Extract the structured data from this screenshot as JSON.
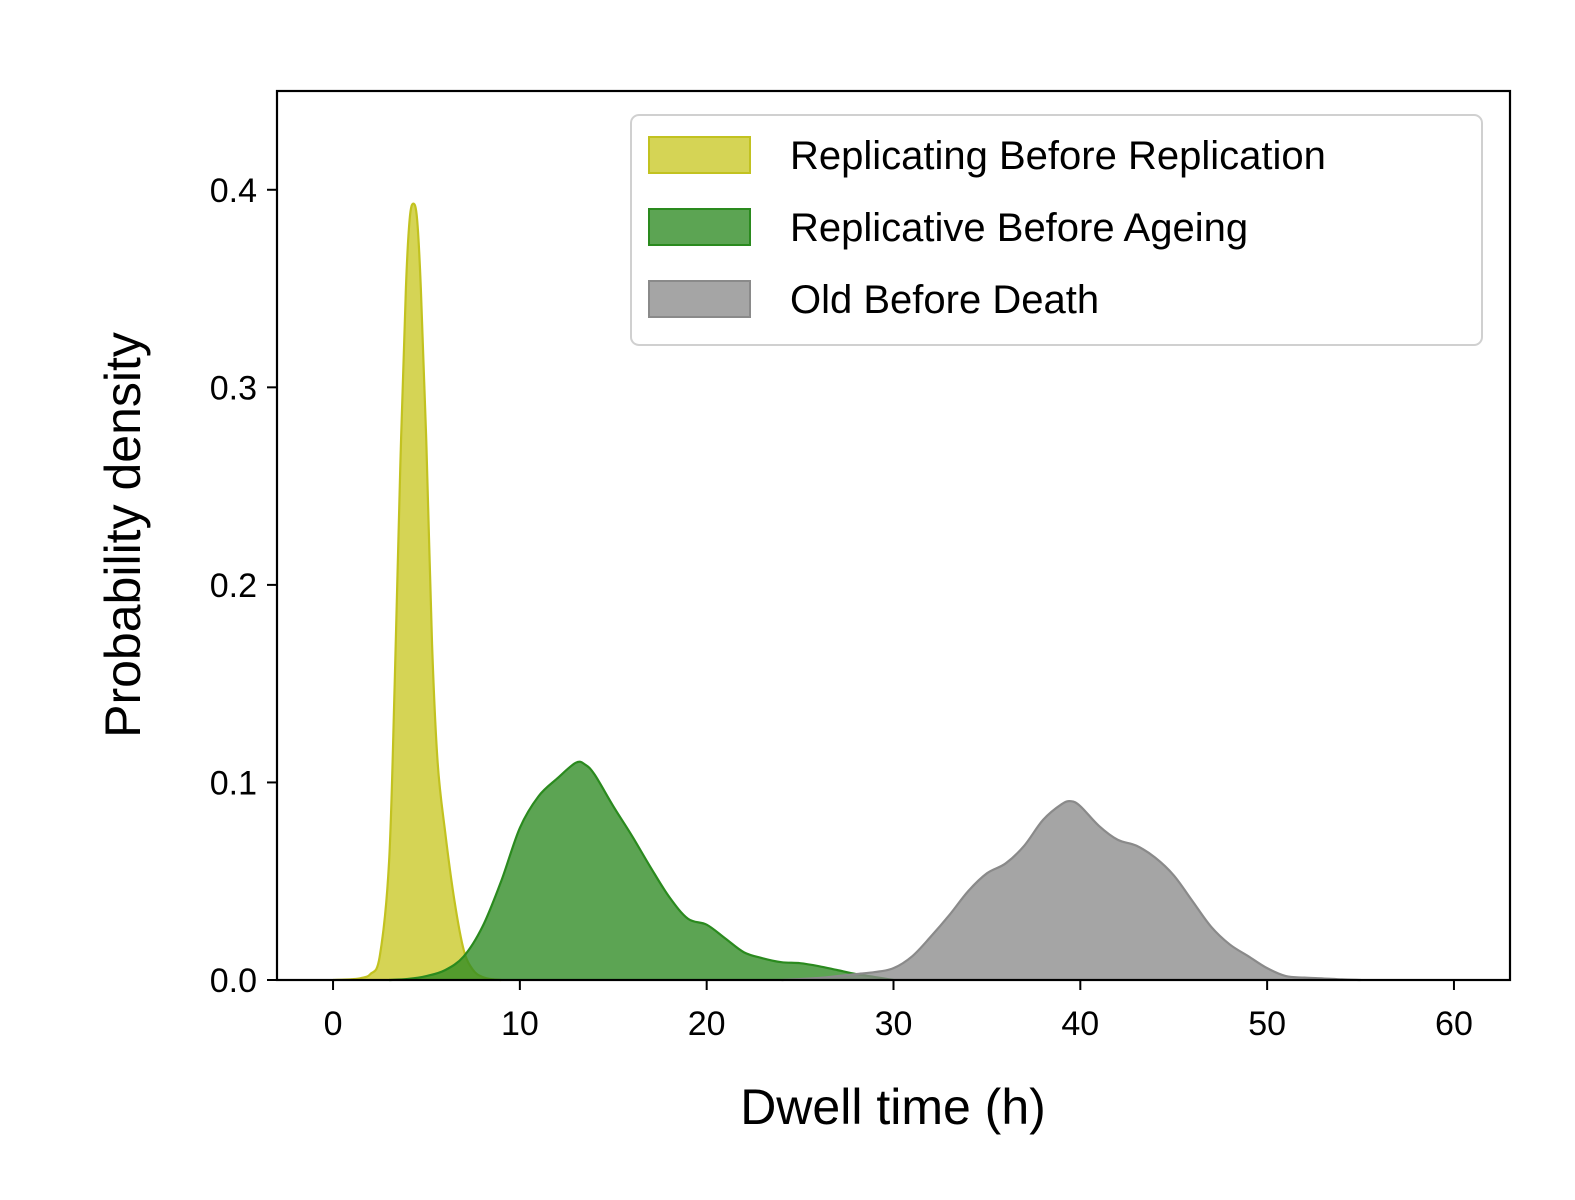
{
  "chart_data": {
    "type": "area",
    "title": "",
    "xlabel": "Dwell time (h)",
    "ylabel": "Probability density",
    "xlim": [
      -3,
      63
    ],
    "ylim": [
      0,
      0.45
    ],
    "xticks": [
      0,
      10,
      20,
      30,
      40,
      50,
      60
    ],
    "yticks": [
      0.0,
      0.1,
      0.2,
      0.3,
      0.4
    ],
    "xtick_labels": [
      "0",
      "10",
      "20",
      "30",
      "40",
      "50",
      "60"
    ],
    "ytick_labels": [
      "0.0",
      "0.1",
      "0.2",
      "0.3",
      "0.4"
    ],
    "grid": false,
    "legend_position": "top-right",
    "series": [
      {
        "name": "Replicating Before Replication",
        "fill": "#c9c825",
        "stroke": "#c2c220",
        "x": [
          0,
          1,
          1.5,
          2,
          2.5,
          3,
          3.3,
          3.6,
          3.9,
          4.1,
          4.3,
          4.5,
          4.7,
          5,
          5.3,
          5.6,
          6,
          6.5,
          7,
          7.5,
          8,
          8.5,
          9
        ],
        "y": [
          0,
          0.0004,
          0.001,
          0.003,
          0.012,
          0.06,
          0.15,
          0.26,
          0.35,
          0.385,
          0.393,
          0.385,
          0.35,
          0.27,
          0.17,
          0.11,
          0.075,
          0.04,
          0.015,
          0.005,
          0.0015,
          0.0004,
          0
        ]
      },
      {
        "name": "Replicative Before Ageing",
        "fill": "#2e8b22",
        "stroke": "#2a8a1e",
        "x": [
          3,
          4,
          5,
          6,
          7,
          8,
          9,
          10,
          11,
          12,
          13,
          13.5,
          14,
          15,
          16,
          17,
          18,
          19,
          20,
          21,
          22,
          23,
          24,
          25,
          26,
          27,
          28,
          29,
          30
        ],
        "y": [
          0,
          0.0005,
          0.002,
          0.005,
          0.012,
          0.027,
          0.05,
          0.077,
          0.093,
          0.102,
          0.11,
          0.109,
          0.104,
          0.088,
          0.073,
          0.057,
          0.042,
          0.031,
          0.028,
          0.021,
          0.014,
          0.011,
          0.009,
          0.0085,
          0.007,
          0.005,
          0.003,
          0.0015,
          0
        ]
      },
      {
        "name": "Old Before Death",
        "fill": "#8c8c8c",
        "stroke": "#8a8a8a",
        "x": [
          24,
          26,
          27,
          28,
          29,
          30,
          31,
          32,
          33,
          34,
          35,
          36,
          37,
          38,
          39,
          39.5,
          40,
          41,
          42,
          43,
          44,
          45,
          46,
          47,
          48,
          49,
          50,
          51,
          52,
          53,
          54,
          55
        ],
        "y": [
          0,
          0.001,
          0.002,
          0.003,
          0.004,
          0.006,
          0.012,
          0.022,
          0.033,
          0.045,
          0.054,
          0.059,
          0.068,
          0.081,
          0.089,
          0.0905,
          0.088,
          0.078,
          0.071,
          0.068,
          0.062,
          0.053,
          0.04,
          0.027,
          0.018,
          0.012,
          0.006,
          0.002,
          0.0012,
          0.0008,
          0.0003,
          0
        ]
      }
    ]
  }
}
